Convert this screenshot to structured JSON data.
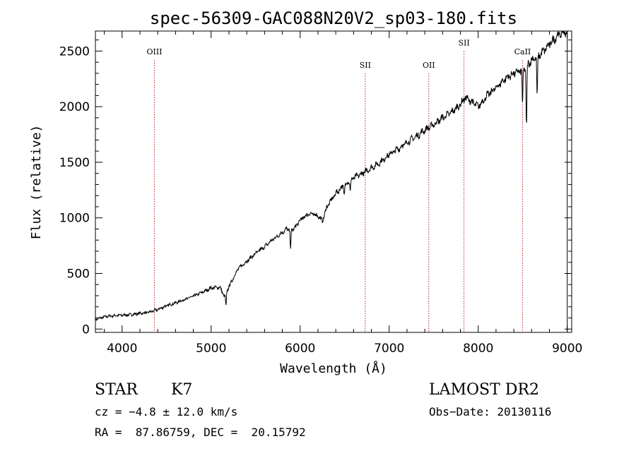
{
  "chart_data": {
    "type": "line",
    "title": "spec-56309-GAC088N20V2_sp03-180.fits",
    "xlabel": "Wavelength (Å)",
    "ylabel": "Flux (relative)",
    "xlim": [
      3700,
      9050
    ],
    "ylim": [
      -30,
      2680
    ],
    "xticks": [
      4000,
      5000,
      6000,
      7000,
      8000,
      9000
    ],
    "yticks": [
      0,
      500,
      1000,
      1500,
      2000,
      2500
    ],
    "grid": false,
    "series": [
      {
        "x": [
          3700,
          3800,
          3900,
          4000,
          4100,
          4200,
          4300,
          4400,
          4500,
          4600,
          4700,
          4800,
          4900,
          5000,
          5100,
          5150,
          5200,
          5250,
          5300,
          5400,
          5500,
          5600,
          5700,
          5800,
          5850,
          5900,
          5950,
          6000,
          6100,
          6200,
          6250,
          6300,
          6400,
          6500,
          6600,
          6700,
          6800,
          6900,
          7000,
          7100,
          7200,
          7300,
          7400,
          7500,
          7600,
          7700,
          7800,
          7850,
          7900,
          8000,
          8100,
          8200,
          8300,
          8400,
          8500,
          8600,
          8700,
          8800,
          8900,
          9000
        ],
        "y": [
          85,
          110,
          120,
          125,
          130,
          140,
          150,
          175,
          210,
          235,
          265,
          295,
          330,
          370,
          375,
          290,
          380,
          460,
          540,
          610,
          680,
          740,
          810,
          870,
          900,
          885,
          920,
          980,
          1040,
          1020,
          970,
          1100,
          1220,
          1300,
          1360,
          1400,
          1450,
          1500,
          1570,
          1620,
          1680,
          1730,
          1790,
          1840,
          1900,
          1950,
          2020,
          2080,
          2060,
          2000,
          2100,
          2170,
          2250,
          2300,
          2330,
          2420,
          2470,
          2560,
          2650,
          2680
        ]
      }
    ],
    "absorption_dips": [
      {
        "x": 5167,
        "depth": 120
      },
      {
        "x": 5892,
        "depth": 160
      },
      {
        "x": 6495,
        "depth": 90
      },
      {
        "x": 6563,
        "depth": 110
      },
      {
        "x": 8498,
        "depth": 330
      },
      {
        "x": 8542,
        "depth": 560
      },
      {
        "x": 8662,
        "depth": 380
      }
    ],
    "lines": [
      {
        "label": "OIII",
        "x": 4363,
        "label_y": 2470
      },
      {
        "label": "SII",
        "x": 6731,
        "label_y": 2350
      },
      {
        "label": "OII",
        "x": 7445,
        "label_y": 2350
      },
      {
        "label": "SII",
        "x": 7840,
        "label_y": 2550
      },
      {
        "label": "CaII",
        "x": 8498,
        "label_y": 2470
      }
    ],
    "colors": {
      "spectrum": "#000000",
      "line_marker": "#b22222"
    }
  },
  "info": {
    "class": "STAR",
    "subclass": "K7",
    "survey": "LAMOST DR2",
    "cz": "cz = −4.8 ± 12.0 km/s",
    "obs_date": "Obs−Date: 20130116",
    "coords": "RA =  87.86759, DEC =  20.15792"
  }
}
